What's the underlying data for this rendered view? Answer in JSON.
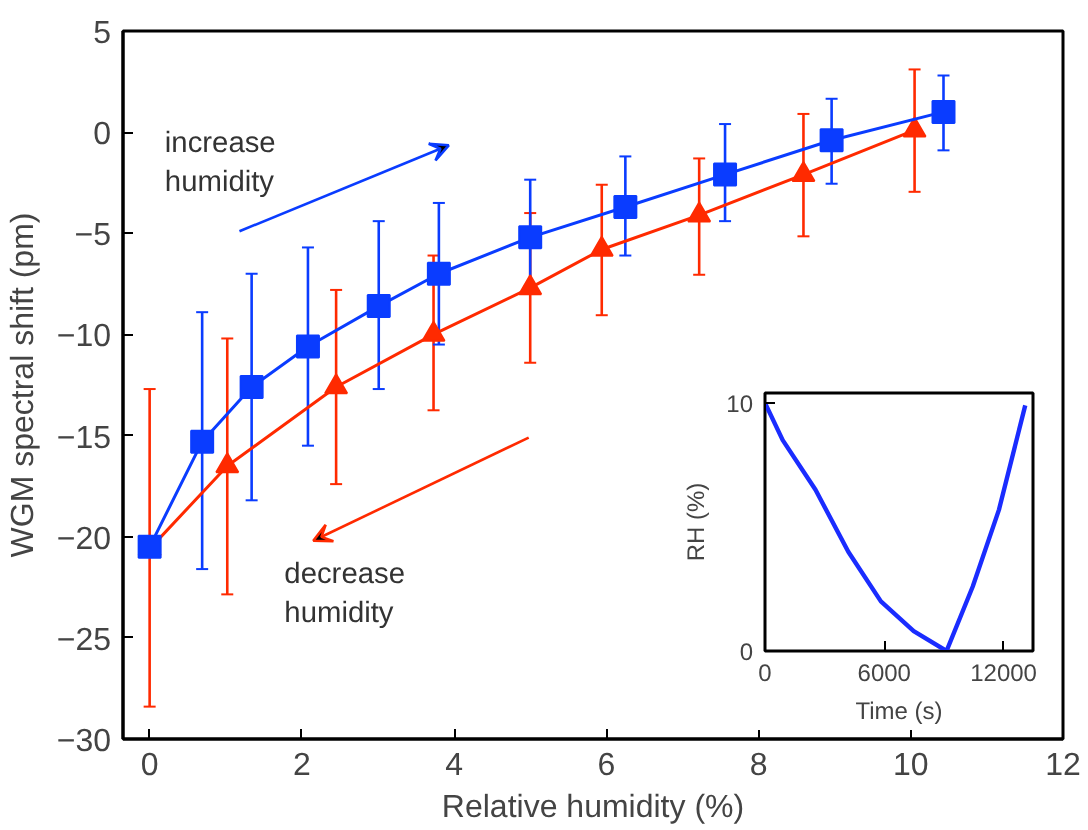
{
  "chart_data": [
    {
      "type": "line",
      "xlabel": "Relative humidity (%)",
      "ylabel": "WGM spectral shift (pm)",
      "xlim": [
        -0.35,
        12
      ],
      "ylim": [
        -30,
        5
      ],
      "xticks": [
        0,
        2,
        4,
        6,
        8,
        10,
        12
      ],
      "yticks": [
        -30,
        -25,
        -20,
        -15,
        -10,
        -5,
        0,
        5
      ],
      "grid": false,
      "line_style": "solid",
      "annotations": [
        "increase\nhumidity",
        "decrease\nhumidity"
      ],
      "series": [
        {
          "color": "#ff2a00",
          "marker": "triangle",
          "x": [
            0,
            1.02,
            2.45,
            3.73,
            5.0,
            5.94,
            7.22,
            8.59,
            10.05
          ],
          "values": [
            -20.6,
            -16.5,
            -12.6,
            -10.0,
            -7.7,
            -5.8,
            -4.1,
            -2.1,
            0.1
          ],
          "errors": [
            [
              -28.4,
              -12.7
            ],
            [
              -22.85,
              -10.2
            ],
            [
              -17.4,
              -7.8
            ],
            [
              -13.75,
              -6.1
            ],
            [
              -11.4,
              -4.0
            ],
            [
              -9.05,
              -2.6
            ],
            [
              -7.05,
              -1.3
            ],
            [
              -5.15,
              0.9
            ],
            [
              -2.95,
              3.1
            ]
          ]
        },
        {
          "color": "#0a3cff",
          "marker": "square",
          "x": [
            0,
            0.69,
            1.34,
            2.08,
            3.01,
            3.8,
            5.0,
            6.25,
            7.56,
            8.96,
            10.43
          ],
          "values": [
            -20.5,
            -15.3,
            -12.6,
            -10.6,
            -8.6,
            -7.0,
            -5.2,
            -3.7,
            -2.1,
            -0.4,
            1.0
          ],
          "errors": [
            null,
            [
              -21.6,
              -8.9
            ],
            [
              -18.2,
              -7.0
            ],
            [
              -15.5,
              -5.7
            ],
            [
              -12.7,
              -4.4
            ],
            [
              -10.5,
              -3.5
            ],
            [
              -7.9,
              -2.35
            ],
            [
              -6.1,
              -1.2
            ],
            [
              -4.4,
              0.4
            ],
            [
              -2.55,
              1.65
            ],
            [
              -0.9,
              2.8
            ]
          ]
        }
      ]
    },
    {
      "type": "line",
      "xlabel": "Time (s)",
      "ylabel": "RH (%)",
      "xlim": [
        0,
        13480
      ],
      "ylim": [
        0,
        10.4
      ],
      "xticks": [
        0,
        6000,
        12000
      ],
      "yticks": [
        0,
        10
      ],
      "grid": false,
      "series": [
        {
          "color": "#1a2cff",
          "x": [
            0,
            890,
            2540,
            4190,
            5830,
            7480,
            9130,
            10450,
            11770,
            13090
          ],
          "values": [
            10,
            8.5,
            6.5,
            4.0,
            2.0,
            0.8,
            0,
            2.6,
            5.7,
            9.9
          ]
        }
      ]
    }
  ]
}
